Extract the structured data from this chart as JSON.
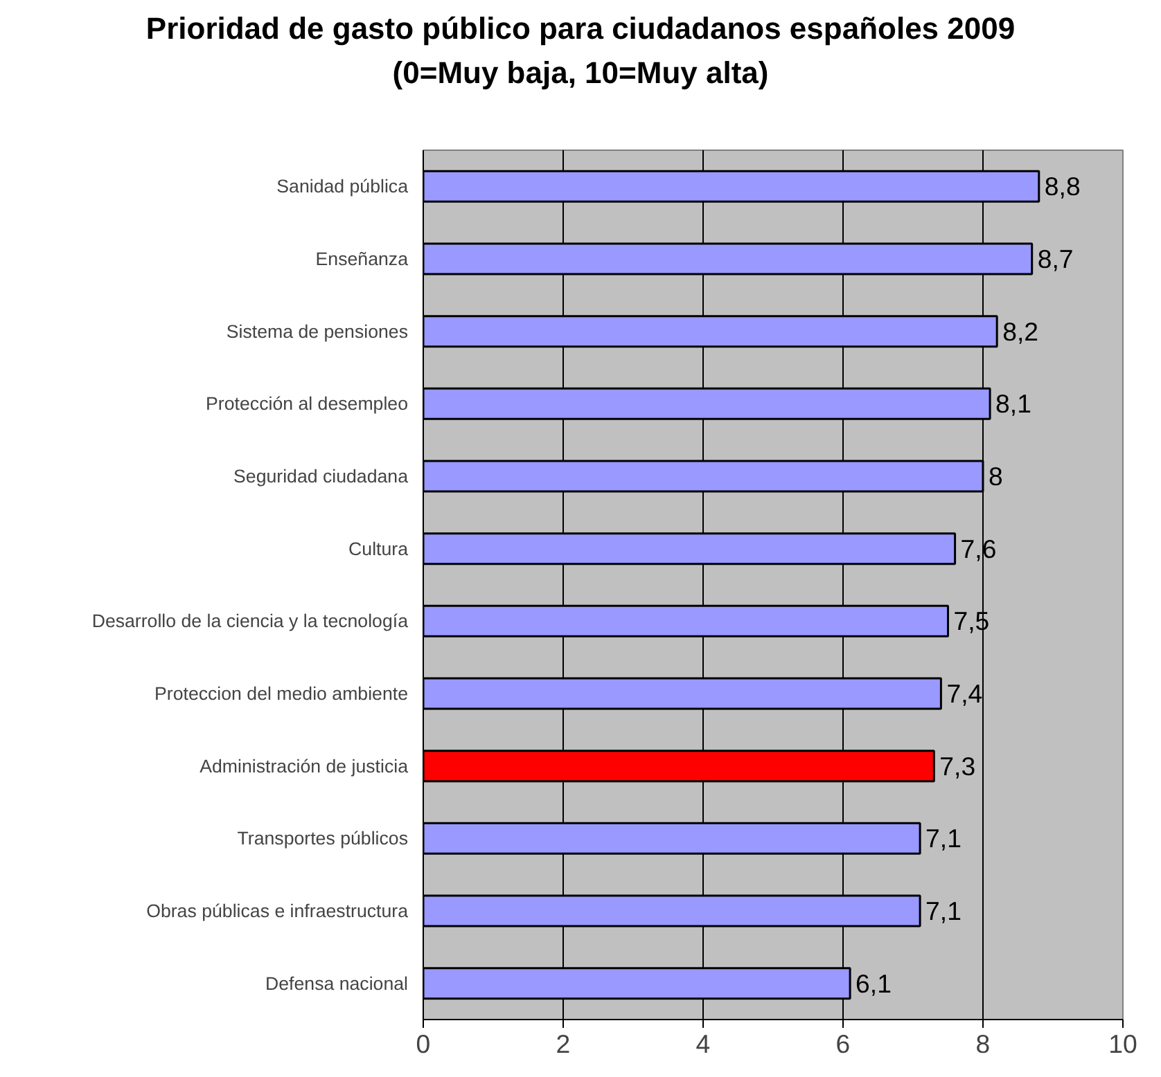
{
  "chart_data": {
    "type": "bar",
    "orientation": "horizontal",
    "title": "Prioridad de gasto público para ciudadanos españoles 2009 (0=Muy baja, 10=Muy alta)",
    "categories": [
      "Sanidad pública",
      "Enseñanza",
      "Sistema de pensiones",
      "Protección al desempleo",
      "Seguridad ciudadana",
      "Cultura",
      "Desarrollo de la ciencia y la tecnología",
      "Proteccion del medio ambiente",
      "Administración de justicia",
      "Transportes públicos",
      "Obras públicas e infraestructura",
      "Defensa nacional"
    ],
    "values": [
      8.8,
      8.7,
      8.2,
      8.1,
      8,
      7.6,
      7.5,
      7.4,
      7.3,
      7.1,
      7.1,
      6.1
    ],
    "colors": [
      "#9999ff",
      "#9999ff",
      "#9999ff",
      "#9999ff",
      "#9999ff",
      "#9999ff",
      "#9999ff",
      "#9999ff",
      "#ff0000",
      "#9999ff",
      "#9999ff",
      "#9999ff"
    ],
    "value_labels": [
      "8,8",
      "8,7",
      "8,2",
      "8,1",
      "8",
      "7,6",
      "7,5",
      "7,4",
      "7,3",
      "7,1",
      "7,1",
      "6,1"
    ],
    "xlim": [
      0,
      10
    ],
    "xticks": [
      0,
      2,
      4,
      6,
      8,
      10
    ],
    "grid": "x",
    "legend": false
  }
}
